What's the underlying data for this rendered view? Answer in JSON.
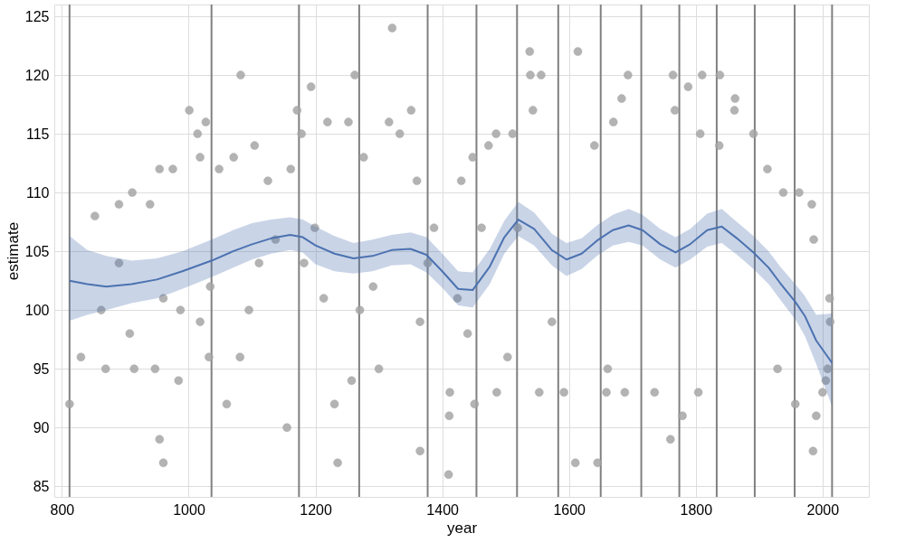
{
  "chart_data": {
    "type": "scatter",
    "xlabel": "year",
    "ylabel": "estimate",
    "xlim": [
      788,
      2073
    ],
    "ylim": [
      84.1,
      126.0
    ],
    "xticks": [
      800,
      1000,
      1200,
      1400,
      1600,
      1800,
      2000
    ],
    "yticks": [
      85,
      90,
      95,
      100,
      105,
      110,
      115,
      120,
      125
    ],
    "grid": true,
    "marker": "circle",
    "series": [
      {
        "color": "#a6a6a6",
        "x": [
          812,
          830,
          852,
          862,
          869,
          890,
          890,
          911,
          907,
          914,
          939,
          947,
          954,
          954,
          960,
          960,
          975,
          984,
          987,
          1001,
          1014,
          1018,
          1018,
          1027,
          1032,
          1034,
          1060,
          1048,
          1071,
          1082,
          1081,
          1095,
          1104,
          1111,
          1125,
          1137,
          1155,
          1161,
          1171,
          1178,
          1182,
          1193,
          1199,
          1213,
          1219,
          1230,
          1235,
          1252,
          1257,
          1262,
          1270,
          1276,
          1291,
          1300,
          1316,
          1321,
          1333,
          1351,
          1360,
          1365,
          1365,
          1377,
          1387,
          1411,
          1410,
          1412,
          1424,
          1430,
          1440,
          1448,
          1451,
          1462,
          1473,
          1486,
          1485,
          1503,
          1511,
          1519,
          1538,
          1539,
          1543,
          1556,
          1553,
          1573,
          1592,
          1610,
          1614,
          1640,
          1645,
          1661,
          1670,
          1693,
          1683,
          1659,
          1688,
          1735,
          1760,
          1779,
          1804,
          1764,
          1788,
          1810,
          1838,
          1862,
          1861,
          1767,
          1807,
          1837,
          1891,
          1913,
          1938,
          1963,
          1983,
          1986,
          1929,
          1957,
          1985,
          1990,
          2000,
          2005,
          2008,
          2011,
          2012
        ],
        "values": [
          92,
          96,
          108,
          100,
          95,
          104,
          109,
          110,
          98,
          95,
          109,
          95,
          89,
          112,
          87,
          101,
          112,
          94,
          100,
          117,
          115,
          113,
          99,
          116,
          96,
          102,
          92,
          112,
          113,
          120,
          96,
          100,
          114,
          104,
          111,
          106,
          90,
          112,
          117,
          115,
          104,
          119,
          107,
          101,
          116,
          92,
          87,
          116,
          94,
          120,
          100,
          113,
          102,
          95,
          116,
          124,
          115,
          117,
          111,
          88,
          99,
          104,
          107,
          91,
          86,
          93,
          101,
          111,
          98,
          113,
          92,
          107,
          114,
          93,
          115,
          96,
          115,
          107,
          122,
          120,
          117,
          120,
          93,
          99,
          93,
          87,
          122,
          114,
          87,
          95,
          116,
          120,
          118,
          93,
          93,
          93,
          89,
          91,
          93,
          120,
          119,
          120,
          120,
          118,
          117,
          117,
          115,
          114,
          115,
          112,
          110,
          110,
          109,
          106,
          95,
          92,
          88,
          91,
          93,
          94,
          95,
          101,
          99
        ]
      },
      {
        "type": "line",
        "marker": "none",
        "color": "#4c72b0",
        "x": [
          812,
          840,
          870,
          910,
          950,
          990,
          1036,
          1070,
          1100,
          1130,
          1160,
          1180,
          1200,
          1230,
          1260,
          1290,
          1320,
          1350,
          1375,
          1400,
          1425,
          1448,
          1475,
          1498,
          1520,
          1545,
          1573,
          1596,
          1620,
          1644,
          1669,
          1694,
          1716,
          1744,
          1768,
          1791,
          1818,
          1841,
          1865,
          1891,
          1915,
          1933,
          1957,
          1972,
          1990,
          2015
        ],
        "values": [
          102.5,
          102.2,
          102.0,
          102.2,
          102.6,
          103.3,
          104.2,
          105.0,
          105.6,
          106.1,
          106.4,
          106.2,
          105.5,
          104.8,
          104.4,
          104.6,
          105.1,
          105.2,
          104.7,
          103.3,
          101.8,
          101.7,
          103.7,
          106.2,
          107.7,
          106.9,
          105.1,
          104.3,
          104.8,
          105.9,
          106.8,
          107.2,
          106.8,
          105.6,
          104.9,
          105.6,
          106.8,
          107.1,
          106.1,
          104.9,
          103.6,
          102.3,
          100.7,
          99.5,
          97.4,
          95.5
        ],
        "lower": [
          99.1,
          99.6,
          100.0,
          100.6,
          101.0,
          101.8,
          102.8,
          103.6,
          104.3,
          104.8,
          105.1,
          104.9,
          103.9,
          103.3,
          103.1,
          103.3,
          103.8,
          103.9,
          103.2,
          101.9,
          100.4,
          100.2,
          102.2,
          104.8,
          106.3,
          105.5,
          103.8,
          102.9,
          103.5,
          104.6,
          105.5,
          105.8,
          105.5,
          104.3,
          103.6,
          104.3,
          105.4,
          105.7,
          104.7,
          103.5,
          102.2,
          100.9,
          99.2,
          97.8,
          95.4,
          91.8
        ],
        "upper": [
          106.3,
          105.1,
          104.6,
          104.2,
          104.4,
          105.0,
          106.0,
          106.8,
          107.4,
          107.7,
          107.9,
          107.7,
          107.1,
          106.3,
          105.7,
          106.0,
          106.4,
          106.6,
          106.2,
          104.8,
          103.3,
          103.2,
          105.2,
          107.6,
          109.2,
          108.3,
          106.5,
          105.7,
          106.1,
          107.2,
          108.1,
          108.6,
          108.1,
          106.9,
          106.2,
          106.9,
          108.2,
          108.6,
          107.5,
          106.3,
          105.0,
          103.7,
          102.2,
          101.2,
          99.6,
          99.7
        ]
      }
    ],
    "ref_lines": [
      {
        "axis": "x",
        "value": 812,
        "color": "#808080"
      },
      {
        "axis": "x",
        "value": 1036,
        "color": "#808080"
      },
      {
        "axis": "x",
        "value": 1174,
        "color": "#808080"
      },
      {
        "axis": "x",
        "value": 1269,
        "color": "#808080"
      },
      {
        "axis": "x",
        "value": 1377,
        "color": "#808080"
      },
      {
        "axis": "x",
        "value": 1454,
        "color": "#808080"
      },
      {
        "axis": "x",
        "value": 1518,
        "color": "#808080"
      },
      {
        "axis": "x",
        "value": 1583,
        "color": "#808080"
      },
      {
        "axis": "x",
        "value": 1650,
        "color": "#808080"
      },
      {
        "axis": "x",
        "value": 1714,
        "color": "#808080"
      },
      {
        "axis": "x",
        "value": 1774,
        "color": "#808080"
      },
      {
        "axis": "x",
        "value": 1833,
        "color": "#808080"
      },
      {
        "axis": "x",
        "value": 1893,
        "color": "#808080"
      },
      {
        "axis": "x",
        "value": 1956,
        "color": "#808080"
      },
      {
        "axis": "x",
        "value": 2015,
        "color": "#808080"
      }
    ]
  }
}
